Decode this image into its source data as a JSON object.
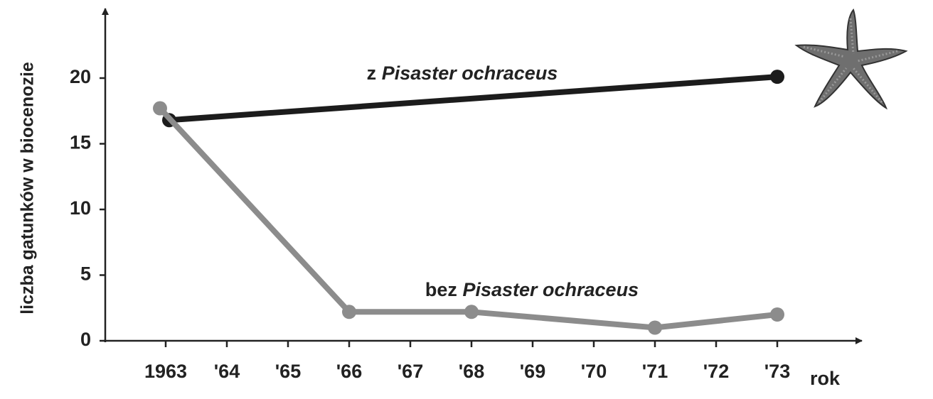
{
  "chart_data": {
    "type": "line",
    "y_label": "liczba gatunków w biocenozie",
    "x_label": "rok",
    "categories": [
      "1963",
      "'64",
      "'65",
      "'66",
      "'67",
      "'68",
      "'69",
      "'70",
      "'71",
      "'72",
      "'73"
    ],
    "series": [
      {
        "name": "z Pisaster ochraceus",
        "color": "#1c1c1c",
        "values": [
          16.8,
          null,
          null,
          null,
          null,
          null,
          null,
          null,
          null,
          null,
          20.1
        ]
      },
      {
        "name": "bez Pisaster ochraceus",
        "color": "#8c8c8c",
        "values": [
          17.7,
          null,
          null,
          2.2,
          null,
          2.2,
          null,
          null,
          1.0,
          null,
          2.0
        ]
      }
    ],
    "ylim": [
      0,
      25
    ],
    "yticks": [
      0,
      5,
      10,
      15,
      20
    ]
  }
}
